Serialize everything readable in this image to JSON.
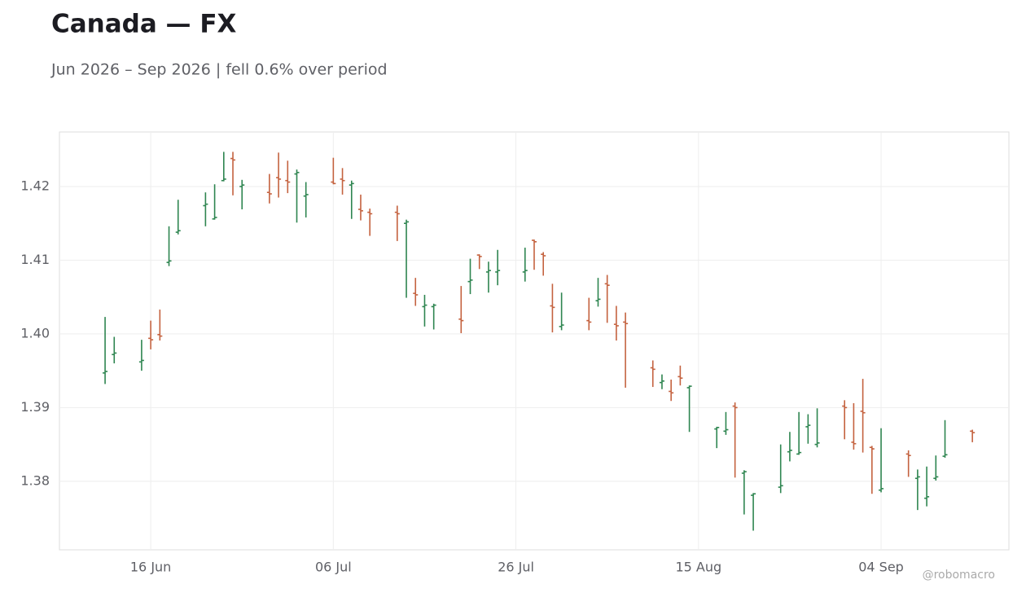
{
  "chart_data": {
    "type": "ohlc",
    "title": "Canada — FX",
    "subtitle": "Jun 2026 – Sep 2026 | fell 0.6% over period",
    "watermark": "@robomacro",
    "x": [
      "2026-06-11",
      "2026-06-12",
      "2026-06-15",
      "2026-06-16",
      "2026-06-17",
      "2026-06-18",
      "2026-06-19",
      "2026-06-22",
      "2026-06-23",
      "2026-06-24",
      "2026-06-25",
      "2026-06-26",
      "2026-06-29",
      "2026-06-30",
      "2026-07-01",
      "2026-07-02",
      "2026-07-03",
      "2026-07-06",
      "2026-07-07",
      "2026-07-08",
      "2026-07-09",
      "2026-07-10",
      "2026-07-13",
      "2026-07-14",
      "2026-07-15",
      "2026-07-16",
      "2026-07-17",
      "2026-07-20",
      "2026-07-21",
      "2026-07-22",
      "2026-07-23",
      "2026-07-24",
      "2026-07-27",
      "2026-07-28",
      "2026-07-29",
      "2026-07-30",
      "2026-07-31",
      "2026-08-03",
      "2026-08-04",
      "2026-08-05",
      "2026-08-06",
      "2026-08-07",
      "2026-08-10",
      "2026-08-11",
      "2026-08-12",
      "2026-08-13",
      "2026-08-14",
      "2026-08-17",
      "2026-08-18",
      "2026-08-19",
      "2026-08-20",
      "2026-08-21",
      "2026-08-24",
      "2026-08-25",
      "2026-08-26",
      "2026-08-27",
      "2026-08-28",
      "2026-08-31",
      "2026-09-01",
      "2026-09-02",
      "2026-09-03",
      "2026-09-04",
      "2026-09-07",
      "2026-09-08",
      "2026-09-09",
      "2026-09-10",
      "2026-09-11",
      "2026-09-14"
    ],
    "open": [
      1.3947,
      1.3972,
      1.3962,
      1.3994,
      1.3999,
      1.4097,
      1.4138,
      1.4174,
      1.4156,
      1.4208,
      1.4238,
      1.42,
      1.4192,
      1.4212,
      1.4208,
      1.4217,
      1.4187,
      1.4206,
      1.421,
      1.4202,
      1.4169,
      1.4165,
      1.4165,
      1.415,
      1.4055,
      1.4037,
      1.4037,
      1.402,
      1.4071,
      1.4107,
      1.4084,
      1.4084,
      1.4084,
      1.4127,
      1.4108,
      1.4038,
      1.401,
      1.4018,
      1.4045,
      1.4068,
      1.4013,
      1.4016,
      1.3954,
      1.3934,
      1.3922,
      1.3942,
      1.3927,
      1.3871,
      1.3868,
      1.3902,
      1.3811,
      1.3781,
      1.3792,
      1.384,
      1.3837,
      1.3874,
      1.385,
      1.3902,
      1.3853,
      1.3895,
      1.3846,
      1.3788,
      1.3837,
      1.3804,
      1.3777,
      1.3804,
      1.3834,
      1.3868
    ],
    "high": [
      1.4023,
      1.3996,
      1.3992,
      1.4018,
      1.4033,
      1.4146,
      1.4182,
      1.4192,
      1.4203,
      1.4247,
      1.4247,
      1.4209,
      1.4217,
      1.4246,
      1.4235,
      1.4223,
      1.4206,
      1.4239,
      1.4225,
      1.4208,
      1.4189,
      1.417,
      1.4174,
      1.4155,
      1.4076,
      1.4053,
      1.4041,
      1.4065,
      1.4102,
      1.4108,
      1.4098,
      1.4114,
      1.4117,
      1.4128,
      1.4111,
      1.4068,
      1.4056,
      1.4049,
      1.4076,
      1.408,
      1.4038,
      1.4029,
      1.3964,
      1.3945,
      1.3938,
      1.3957,
      1.393,
      1.3874,
      1.3894,
      1.3907,
      1.3815,
      1.3784,
      1.385,
      1.3867,
      1.3894,
      1.3891,
      1.3899,
      1.391,
      1.3906,
      1.3939,
      1.3848,
      1.3872,
      1.3842,
      1.3816,
      1.382,
      1.3835,
      1.3883,
      1.387
    ],
    "low": [
      1.3932,
      1.396,
      1.395,
      1.3979,
      1.3991,
      1.4092,
      1.4135,
      1.4146,
      1.4155,
      1.4207,
      1.4188,
      1.4169,
      1.4177,
      1.4185,
      1.4191,
      1.4151,
      1.4158,
      1.4203,
      1.4189,
      1.4156,
      1.4154,
      1.4133,
      1.4126,
      1.4049,
      1.4038,
      1.401,
      1.4006,
      1.4001,
      1.4054,
      1.4088,
      1.4056,
      1.4066,
      1.4071,
      1.4087,
      1.4079,
      1.4002,
      1.4005,
      1.4005,
      1.4037,
      1.4015,
      1.3991,
      1.3927,
      1.3928,
      1.3925,
      1.3909,
      1.393,
      1.3867,
      1.3845,
      1.3863,
      1.3805,
      1.3755,
      1.3733,
      1.3784,
      1.3827,
      1.3836,
      1.3851,
      1.3846,
      1.3857,
      1.3843,
      1.3839,
      1.3783,
      1.3785,
      1.3806,
      1.3761,
      1.3766,
      1.3801,
      1.3832,
      1.3853
    ],
    "close": [
      1.3949,
      1.3974,
      1.3964,
      1.3992,
      1.3997,
      1.4099,
      1.414,
      1.4176,
      1.4158,
      1.421,
      1.4236,
      1.4202,
      1.419,
      1.421,
      1.4206,
      1.4219,
      1.4189,
      1.4204,
      1.4208,
      1.4204,
      1.4167,
      1.4163,
      1.4163,
      1.4152,
      1.4053,
      1.4039,
      1.4039,
      1.4018,
      1.4073,
      1.4105,
      1.4086,
      1.4086,
      1.4086,
      1.4125,
      1.4106,
      1.4036,
      1.4012,
      1.4016,
      1.4047,
      1.4066,
      1.4011,
      1.4014,
      1.3952,
      1.3936,
      1.392,
      1.394,
      1.3929,
      1.3873,
      1.387,
      1.39,
      1.3813,
      1.3783,
      1.3794,
      1.3842,
      1.3839,
      1.3876,
      1.3852,
      1.39,
      1.3851,
      1.3893,
      1.3844,
      1.379,
      1.3835,
      1.3806,
      1.3779,
      1.3806,
      1.3836,
      1.3866
    ],
    "up_color": "#2e8550",
    "down_color": "#c4623f",
    "xlim": [
      "2026-06-06",
      "2026-09-18"
    ],
    "xticks": [
      {
        "value": "2026-06-16",
        "label": "16 Jun"
      },
      {
        "value": "2026-07-06",
        "label": "06 Jul"
      },
      {
        "value": "2026-07-26",
        "label": "26 Jul"
      },
      {
        "value": "2026-08-15",
        "label": "15 Aug"
      },
      {
        "value": "2026-09-04",
        "label": "04 Sep"
      }
    ],
    "ylim": [
      1.3707,
      1.4274
    ],
    "yticks": [
      1.38,
      1.39,
      {
        "value": 1.4,
        "label": "1.40"
      },
      1.41,
      1.42
    ],
    "grid": true
  }
}
